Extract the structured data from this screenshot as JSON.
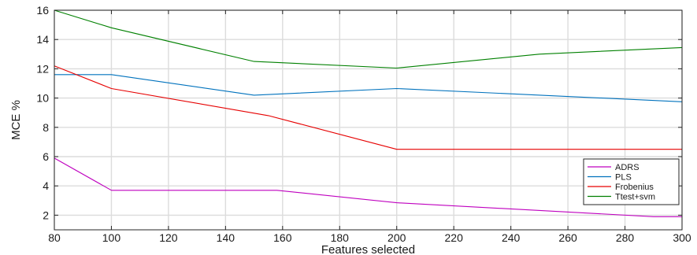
{
  "chart_data": {
    "type": "line",
    "title": "",
    "xlabel": "Features selected",
    "ylabel": "MCE %",
    "xlim": [
      80,
      300
    ],
    "ylim": [
      1,
      16
    ],
    "xticks": [
      80,
      100,
      120,
      140,
      160,
      180,
      200,
      220,
      240,
      260,
      280,
      300
    ],
    "yticks": [
      2,
      4,
      6,
      8,
      10,
      12,
      14,
      16
    ],
    "grid": true,
    "legend_position": "bottom-right",
    "series": [
      {
        "name": "ADRS",
        "color": "#bf00bf",
        "x": [
          80,
          100,
          158,
          200,
          290,
          300
        ],
        "y": [
          5.9,
          3.7,
          3.7,
          2.85,
          1.9,
          1.9
        ]
      },
      {
        "name": "PLS",
        "color": "#0072bd",
        "x": [
          80,
          100,
          150,
          200,
          300
        ],
        "y": [
          11.6,
          11.6,
          10.2,
          10.65,
          9.75
        ]
      },
      {
        "name": "Frobenius",
        "color": "#e60000",
        "x": [
          80,
          100,
          155,
          200,
          300
        ],
        "y": [
          12.2,
          10.65,
          8.8,
          6.5,
          6.5
        ]
      },
      {
        "name": "Ttest+svm",
        "color": "#008000",
        "x": [
          80,
          100,
          150,
          200,
          250,
          300
        ],
        "y": [
          16.0,
          14.8,
          12.5,
          12.05,
          13.0,
          13.45
        ]
      }
    ]
  }
}
